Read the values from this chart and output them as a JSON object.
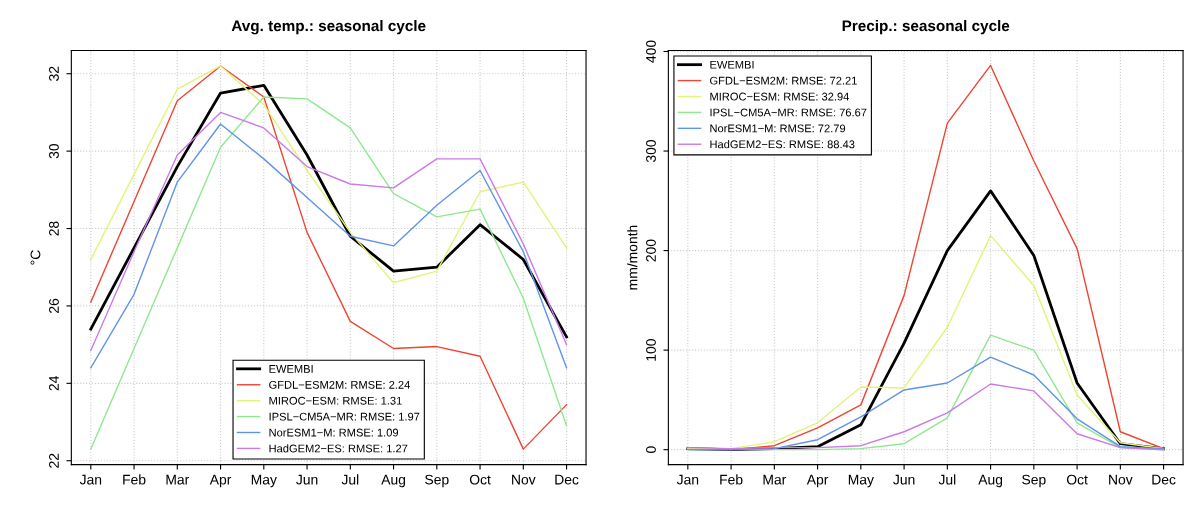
{
  "chart_data": [
    {
      "type": "line",
      "title": "Avg. temp.: seasonal cycle",
      "ylabel": "°C",
      "categories": [
        "Jan",
        "Feb",
        "Mar",
        "Apr",
        "May",
        "Jun",
        "Jul",
        "Aug",
        "Sep",
        "Oct",
        "Nov",
        "Dec"
      ],
      "ylim": [
        21.9,
        32.6
      ],
      "yticks": [
        22,
        24,
        26,
        28,
        30,
        32
      ],
      "grid": true,
      "legend": "bottom",
      "marker": "none",
      "line_style": "solid",
      "series": [
        {
          "name": "EWEMBI",
          "color": "#000000",
          "values": [
            25.4,
            27.5,
            29.6,
            31.5,
            31.7,
            29.9,
            27.8,
            26.9,
            27.0,
            28.1,
            27.2,
            25.2
          ]
        },
        {
          "name": "GFDL−ESM2M: RMSE: 2.24",
          "color": "#ee4433",
          "values": [
            26.1,
            28.7,
            31.3,
            32.2,
            31.4,
            27.9,
            25.6,
            24.9,
            24.95,
            24.7,
            22.3,
            23.45
          ]
        },
        {
          "name": "MIROC−ESM: RMSE: 1.31",
          "color": "#e4f27a",
          "values": [
            27.2,
            29.4,
            31.6,
            32.2,
            31.2,
            29.5,
            27.9,
            26.6,
            26.9,
            28.95,
            29.2,
            27.5
          ]
        },
        {
          "name": "IPSL−CM5A−MR: RMSE: 1.97",
          "color": "#8fe88f",
          "values": [
            22.3,
            24.9,
            27.5,
            30.1,
            31.4,
            31.35,
            30.6,
            28.9,
            28.3,
            28.5,
            26.2,
            22.9
          ]
        },
        {
          "name": "NorESM1−M: RMSE: 1.09",
          "color": "#5f93e8",
          "values": [
            24.4,
            26.3,
            29.2,
            30.7,
            29.8,
            28.8,
            27.8,
            27.55,
            28.6,
            29.5,
            27.4,
            24.4
          ]
        },
        {
          "name": "HadGEM2−ES: RMSE: 1.27",
          "color": "#c97ae8",
          "values": [
            24.85,
            27.4,
            29.9,
            31.0,
            30.6,
            29.6,
            29.15,
            29.05,
            29.8,
            29.8,
            27.6,
            25.0
          ]
        }
      ]
    },
    {
      "type": "line",
      "title": "Precip.: seasonal cycle",
      "ylabel": "mm/month",
      "categories": [
        "Jan",
        "Feb",
        "Mar",
        "Apr",
        "May",
        "Jun",
        "Jul",
        "Aug",
        "Sep",
        "Oct",
        "Nov",
        "Dec"
      ],
      "ylim": [
        -15,
        401
      ],
      "yticks": [
        0,
        100,
        200,
        300,
        400
      ],
      "grid": true,
      "legend": "top left",
      "marker": "none",
      "line_style": "solid",
      "series": [
        {
          "name": "EWEMBI",
          "color": "#000000",
          "values": [
            1,
            0,
            1,
            3,
            25,
            107,
            200,
            260,
            195,
            67,
            6,
            1
          ]
        },
        {
          "name": "GFDL−ESM2M: RMSE: 72.21",
          "color": "#ee4433",
          "values": [
            1,
            0,
            4,
            22,
            45,
            155,
            328,
            386,
            290,
            202,
            18,
            1
          ]
        },
        {
          "name": "MIROC−ESM: RMSE: 32.94",
          "color": "#e4f27a",
          "values": [
            1,
            1,
            8,
            27,
            63,
            62,
            123,
            215,
            165,
            55,
            7,
            1
          ]
        },
        {
          "name": "IPSL−CM5A−MR: RMSE: 76.67",
          "color": "#8fe88f",
          "values": [
            0,
            0,
            0,
            0,
            1,
            6,
            32,
            115,
            100,
            27,
            2,
            0
          ]
        },
        {
          "name": "NorESM1−M: RMSE: 72.79",
          "color": "#5f93e8",
          "values": [
            0,
            0,
            1,
            10,
            33,
            60,
            67,
            93,
            75,
            31,
            3,
            1
          ]
        },
        {
          "name": "HadGEM2−ES: RMSE: 88.43",
          "color": "#c97ae8",
          "values": [
            2,
            1,
            2,
            2,
            4,
            18,
            37,
            66,
            59,
            16,
            2,
            0
          ]
        }
      ]
    }
  ]
}
